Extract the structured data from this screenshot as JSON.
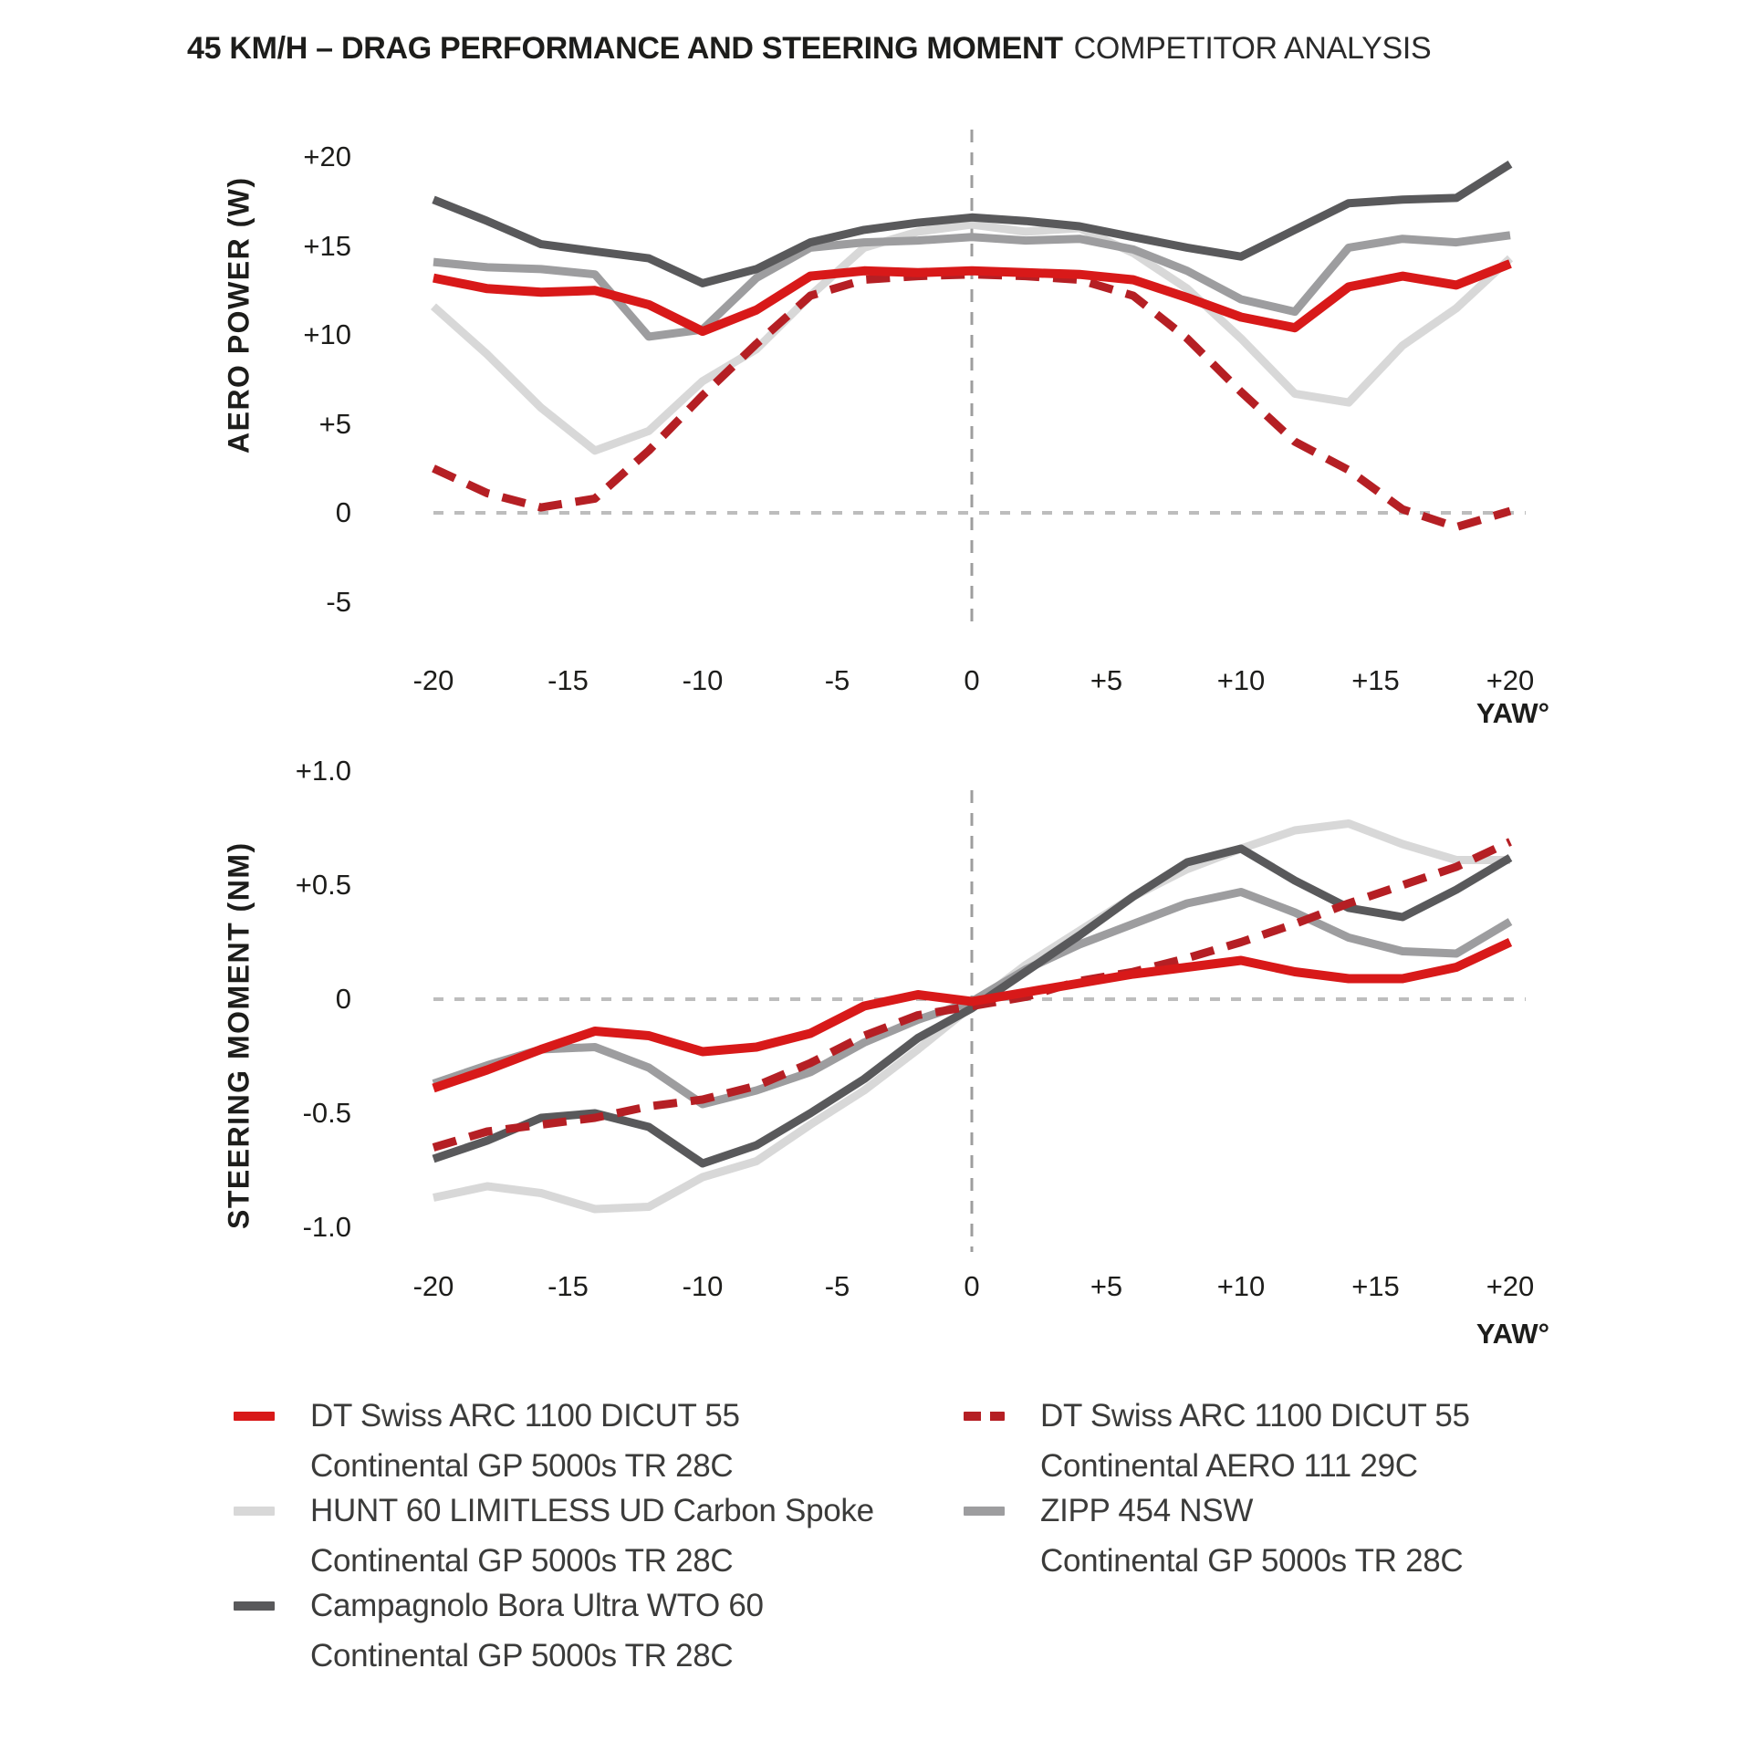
{
  "title": {
    "main": "45 KM/H – DRAG PERFORMANCE AND STEERING MOMENT",
    "suffix": "COMPETITOR ANALYSIS"
  },
  "colors": {
    "red_solid": "#d81919",
    "red_dashed": "#b51f24",
    "gray_light": "#d8d8d8",
    "gray_medium": "#9d9d9f",
    "gray_dark": "#59595b",
    "grid_h": "#bdbdbd",
    "grid_v": "#9e9e9e",
    "text": "#1d1d1b"
  },
  "chart_data": [
    {
      "type": "line",
      "title": "",
      "ylabel": "AERO POWER (W)",
      "xlabel": "YAW°",
      "x": [
        -20,
        -18,
        -16,
        -14,
        -12,
        -10,
        -8,
        -6,
        -4,
        -2,
        0,
        2,
        4,
        6,
        8,
        10,
        12,
        14,
        16,
        18,
        20
      ],
      "xlim": [
        -20,
        20
      ],
      "ylim": [
        -5,
        20
      ],
      "yticks": {
        "values": [
          20,
          15,
          10,
          5,
          0,
          -5
        ],
        "labels": [
          "+20",
          "+15",
          "+10",
          "+5",
          "0",
          "-5"
        ]
      },
      "xticks": {
        "values": [
          -20,
          -15,
          -10,
          -5,
          0,
          5,
          10,
          15,
          20
        ],
        "labels": [
          "-20",
          "-15",
          "-10",
          "-5",
          "0",
          "+5",
          "+10",
          "+15",
          "+20"
        ]
      },
      "grid": {
        "h_zero_dashed": true,
        "v_zero_dashed": true,
        "legend_position": "below"
      },
      "series": [
        {
          "name": "HUNT 60 LIMITLESS UD Carbon Spoke — Continental GP 5000s TR 28C",
          "color": "gray_light",
          "style": "solid",
          "width": 9,
          "values": [
            11.6,
            8.9,
            5.9,
            3.5,
            4.6,
            7.4,
            9.2,
            12.2,
            14.9,
            15.8,
            16.2,
            15.8,
            16.0,
            14.6,
            12.6,
            9.8,
            6.7,
            6.2,
            9.4,
            11.5,
            14.3
          ]
        },
        {
          "name": "ZIPP 454 NSW — Continental GP 5000s TR 28C",
          "color": "gray_medium",
          "style": "solid",
          "width": 9,
          "values": [
            14.1,
            13.8,
            13.7,
            13.4,
            9.9,
            10.3,
            13.2,
            14.9,
            15.2,
            15.3,
            15.5,
            15.3,
            15.4,
            14.8,
            13.6,
            12.0,
            11.3,
            14.9,
            15.4,
            15.2,
            15.6
          ]
        },
        {
          "name": "Campagnolo Bora Ultra WTO 60 — Continental GP 5000s TR 28C",
          "color": "gray_dark",
          "style": "solid",
          "width": 9,
          "values": [
            17.6,
            16.4,
            15.1,
            14.7,
            14.3,
            12.9,
            13.7,
            15.2,
            15.9,
            16.3,
            16.6,
            16.4,
            16.1,
            15.5,
            14.9,
            14.4,
            15.9,
            17.4,
            17.6,
            17.7,
            19.6
          ]
        },
        {
          "name": "DT Swiss ARC 1100 DICUT 55 — Continental AERO 111 29C",
          "color": "red_dashed",
          "style": "dashed",
          "width": 9,
          "values": [
            2.5,
            1.1,
            0.3,
            0.8,
            3.5,
            6.6,
            9.5,
            12.2,
            13.1,
            13.3,
            13.4,
            13.3,
            13.1,
            12.2,
            9.8,
            6.8,
            4.0,
            2.4,
            0.2,
            -0.8,
            0.1
          ]
        },
        {
          "name": "DT Swiss ARC 1100 DICUT 55 — Continental GP 5000s TR 28C",
          "color": "red_solid",
          "style": "solid",
          "width": 10,
          "values": [
            13.2,
            12.6,
            12.4,
            12.5,
            11.7,
            10.2,
            11.4,
            13.3,
            13.6,
            13.5,
            13.6,
            13.5,
            13.4,
            13.1,
            12.1,
            11.0,
            10.4,
            12.7,
            13.3,
            12.8,
            14.0
          ]
        }
      ]
    },
    {
      "type": "line",
      "title": "",
      "ylabel": "STEERING MOMENT (NM)",
      "xlabel": "YAW°",
      "x": [
        -20,
        -18,
        -16,
        -14,
        -12,
        -10,
        -8,
        -6,
        -4,
        -2,
        0,
        2,
        4,
        6,
        8,
        10,
        12,
        14,
        16,
        18,
        20
      ],
      "xlim": [
        -20,
        20
      ],
      "ylim": [
        -1.0,
        1.0
      ],
      "yticks": {
        "values": [
          1.0,
          0.5,
          0,
          -0.5,
          -1.0
        ],
        "labels": [
          "+1.0",
          "+0.5",
          "0",
          "-0.5",
          "-1.0"
        ]
      },
      "xticks": {
        "values": [
          -20,
          -15,
          -10,
          -5,
          0,
          5,
          10,
          15,
          20
        ],
        "labels": [
          "-20",
          "-15",
          "-10",
          "-5",
          "0",
          "+5",
          "+10",
          "+15",
          "+20"
        ]
      },
      "grid": {
        "h_zero_dashed": true,
        "v_zero_dashed": true,
        "legend_position": "below"
      },
      "series": [
        {
          "name": "HUNT 60 LIMITLESS UD Carbon Spoke — Continental GP 5000s TR 28C",
          "color": "gray_light",
          "style": "solid",
          "width": 9,
          "values": [
            -0.87,
            -0.82,
            -0.85,
            -0.92,
            -0.91,
            -0.78,
            -0.71,
            -0.55,
            -0.4,
            -0.22,
            -0.03,
            0.15,
            0.3,
            0.45,
            0.57,
            0.66,
            0.74,
            0.77,
            0.68,
            0.61,
            0.61
          ]
        },
        {
          "name": "ZIPP 454 NSW — Continental GP 5000s TR 28C",
          "color": "gray_medium",
          "style": "solid",
          "width": 9,
          "values": [
            -0.37,
            -0.29,
            -0.22,
            -0.21,
            -0.3,
            -0.46,
            -0.4,
            -0.32,
            -0.19,
            -0.09,
            -0.01,
            0.13,
            0.24,
            0.33,
            0.42,
            0.47,
            0.38,
            0.27,
            0.21,
            0.2,
            0.34
          ]
        },
        {
          "name": "Campagnolo Bora Ultra WTO 60 — Continental GP 5000s TR 28C",
          "color": "gray_dark",
          "style": "solid",
          "width": 9,
          "values": [
            -0.7,
            -0.62,
            -0.52,
            -0.5,
            -0.56,
            -0.72,
            -0.64,
            -0.5,
            -0.35,
            -0.17,
            -0.04,
            0.12,
            0.28,
            0.45,
            0.6,
            0.66,
            0.52,
            0.4,
            0.36,
            0.48,
            0.62
          ]
        },
        {
          "name": "DT Swiss ARC 1100 DICUT 55 — Continental AERO 111 29C",
          "color": "red_dashed",
          "style": "dashed",
          "width": 9,
          "values": [
            -0.65,
            -0.58,
            -0.55,
            -0.52,
            -0.47,
            -0.44,
            -0.38,
            -0.28,
            -0.16,
            -0.07,
            -0.03,
            0.01,
            0.08,
            0.12,
            0.18,
            0.25,
            0.33,
            0.42,
            0.5,
            0.58,
            0.69
          ]
        },
        {
          "name": "DT Swiss ARC 1100 DICUT 55 — Continental GP 5000s TR 28C",
          "color": "red_solid",
          "style": "solid",
          "width": 10,
          "values": [
            -0.39,
            -0.31,
            -0.22,
            -0.14,
            -0.16,
            -0.23,
            -0.21,
            -0.15,
            -0.03,
            0.02,
            -0.01,
            0.03,
            0.07,
            0.11,
            0.14,
            0.17,
            0.12,
            0.09,
            0.09,
            0.14,
            0.25
          ]
        }
      ]
    }
  ],
  "legend": [
    {
      "line1": "DT Swiss ARC 1100 DICUT 55",
      "line2": "Continental GP 5000s TR 28C",
      "swatch": "red_solid",
      "swatch_style": "solid"
    },
    {
      "line1": "HUNT 60 LIMITLESS UD Carbon Spoke",
      "line2": "Continental GP 5000s TR 28C",
      "swatch": "gray_light",
      "swatch_style": "solid"
    },
    {
      "line1": "Campagnolo Bora Ultra WTO 60",
      "line2": "Continental GP 5000s TR 28C",
      "swatch": "gray_dark",
      "swatch_style": "solid"
    },
    {
      "line1": "DT Swiss ARC 1100 DICUT 55",
      "line2": "Continental AERO 111 29C",
      "swatch": "red_dashed",
      "swatch_style": "dashed"
    },
    {
      "line1": "ZIPP 454 NSW",
      "line2": "Continental GP 5000s TR 28C",
      "swatch": "gray_medium",
      "swatch_style": "solid"
    }
  ]
}
